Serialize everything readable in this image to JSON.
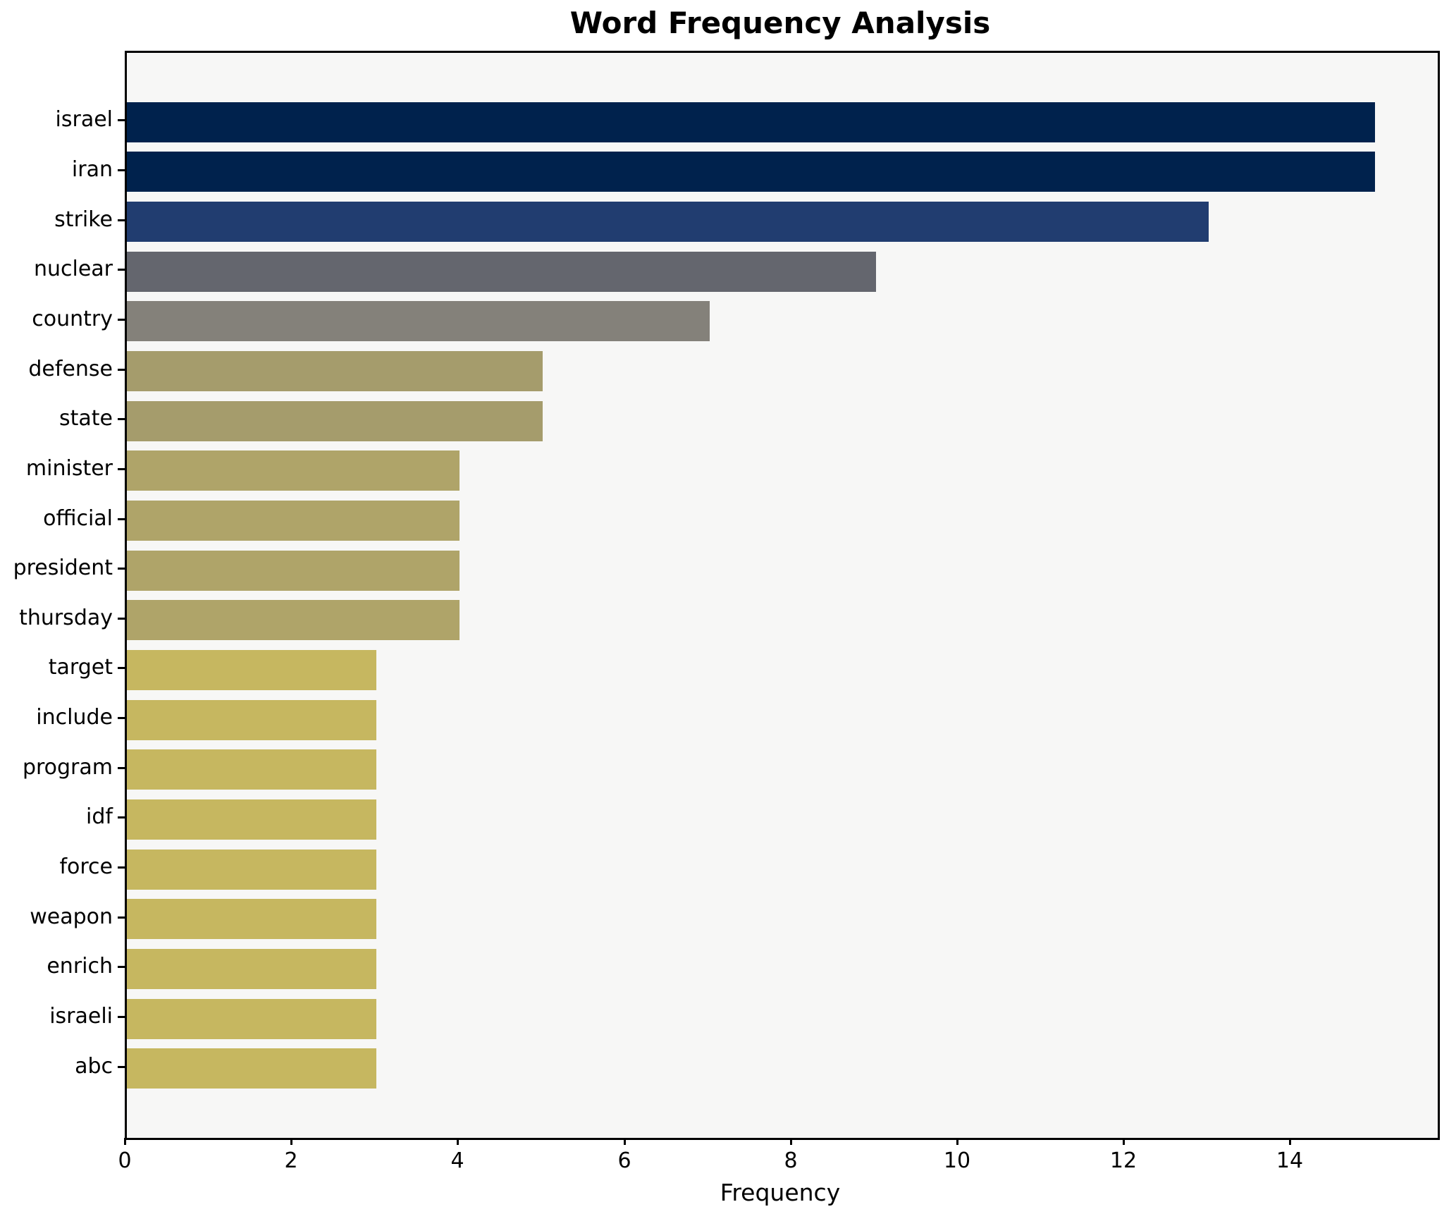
{
  "title": "Word Frequency Analysis",
  "chart_data": {
    "type": "bar",
    "orientation": "horizontal",
    "title": "Word Frequency Analysis",
    "xlabel": "Frequency",
    "ylabel": "",
    "categories": [
      "israel",
      "iran",
      "strike",
      "nuclear",
      "country",
      "defense",
      "state",
      "minister",
      "official",
      "president",
      "thursday",
      "target",
      "include",
      "program",
      "idf",
      "force",
      "weapon",
      "enrich",
      "israeli",
      "abc"
    ],
    "values": [
      15,
      15,
      13,
      9,
      7,
      5,
      5,
      4,
      4,
      4,
      4,
      3,
      3,
      3,
      3,
      3,
      3,
      3,
      3,
      3
    ],
    "bar_colors": [
      "#00224d",
      "#00224d",
      "#213d70",
      "#64666e",
      "#84817a",
      "#a59c6c",
      "#a59c6c",
      "#afa469",
      "#afa469",
      "#afa469",
      "#afa469",
      "#c6b760",
      "#c6b760",
      "#c6b760",
      "#c6b760",
      "#c6b760",
      "#c6b760",
      "#c6b760",
      "#c6b760",
      "#c6b760"
    ],
    "xlim": [
      0,
      15.75
    ],
    "x_ticks": [
      0,
      2,
      4,
      6,
      8,
      10,
      12,
      14
    ],
    "grid": false,
    "legend": null,
    "plot_bg": "#f7f7f6",
    "spine_color": "#000000",
    "outer_bg": "#ffffff"
  }
}
